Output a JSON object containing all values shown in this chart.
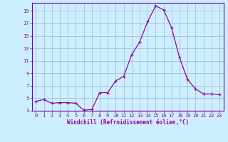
{
  "x": [
    0,
    1,
    2,
    3,
    4,
    5,
    6,
    7,
    8,
    9,
    10,
    11,
    12,
    13,
    14,
    15,
    16,
    17,
    18,
    19,
    20,
    21,
    22,
    23
  ],
  "y": [
    4.5,
    4.8,
    4.2,
    4.3,
    4.3,
    4.2,
    3.1,
    3.2,
    5.9,
    5.9,
    7.8,
    8.5,
    12.0,
    14.0,
    17.3,
    19.8,
    19.2,
    16.3,
    11.5,
    8.0,
    6.5,
    5.7,
    5.7,
    5.6
  ],
  "xlabel": "Windchill (Refroidissement éolien,°C)",
  "ylim": [
    3,
    20
  ],
  "xlim": [
    -0.5,
    23.5
  ],
  "yticks": [
    3,
    5,
    7,
    9,
    11,
    13,
    15,
    17,
    19
  ],
  "xticks": [
    0,
    1,
    2,
    3,
    4,
    5,
    6,
    7,
    8,
    9,
    10,
    11,
    12,
    13,
    14,
    15,
    16,
    17,
    18,
    19,
    20,
    21,
    22,
    23
  ],
  "line_color": "#990099",
  "marker_color": "#990099",
  "bg_color": "#cceeff",
  "grid_color": "#99bbcc",
  "spine_color": "#7700aa",
  "tick_color": "#990099",
  "xlabel_color": "#990099",
  "tick_fontsize": 5.0,
  "xlabel_fontsize": 5.5
}
